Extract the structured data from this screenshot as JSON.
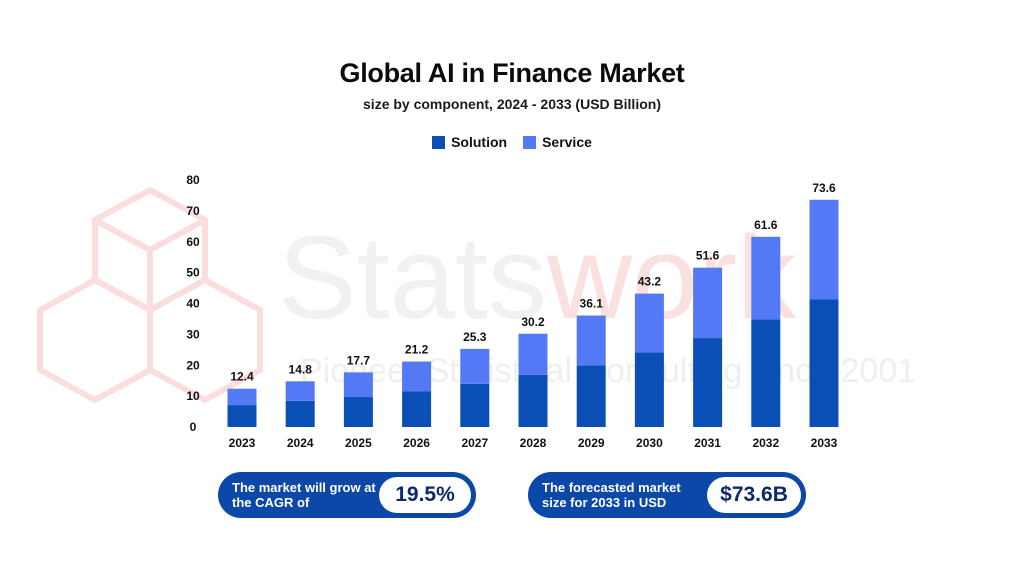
{
  "watermark": {
    "brand_left": "Stats",
    "brand_right": "work",
    "tagline": "Pioneer Statistical Consulting since 2001"
  },
  "colors": {
    "solution": "#0a4fb5",
    "service": "#5479f7",
    "pill": "#0c48a8"
  },
  "chart_data": {
    "type": "bar",
    "stacked": true,
    "title": "Global AI in Finance Market",
    "subtitle": "size by component, 2024 - 2033 (USD Billion)",
    "categories": [
      "2023",
      "2024",
      "2025",
      "2026",
      "2027",
      "2028",
      "2029",
      "2030",
      "2031",
      "2032",
      "2033"
    ],
    "totals": [
      12.4,
      14.8,
      17.7,
      21.2,
      25.3,
      30.2,
      36.1,
      43.2,
      51.6,
      61.6,
      73.6
    ],
    "total_labels": [
      "12.4",
      "14.8",
      "17.7",
      "21.2",
      "25.3",
      "30.2",
      "36.1",
      "43.2",
      "51.6",
      "61.6",
      "73.6"
    ],
    "series": [
      {
        "name": "Solution",
        "values": [
          7.1,
          8.5,
          9.7,
          11.6,
          14.0,
          16.9,
          20.0,
          24.2,
          28.8,
          34.8,
          41.4
        ]
      },
      {
        "name": "Service",
        "values": [
          5.3,
          6.3,
          8.0,
          9.6,
          11.3,
          13.3,
          16.1,
          19.0,
          22.8,
          26.8,
          32.2
        ]
      }
    ],
    "ylim": [
      0,
      80
    ],
    "yticks": [
      "0",
      "10",
      "20",
      "30",
      "40",
      "50",
      "60",
      "70",
      "80"
    ],
    "xlabel": "",
    "ylabel": "",
    "legend_position": "top-center",
    "grid": false
  },
  "callouts": [
    {
      "text": "The market will grow at the CAGR of",
      "value": "19.5%"
    },
    {
      "text": "The forecasted market size for 2033 in USD",
      "value": "$73.6B"
    }
  ]
}
